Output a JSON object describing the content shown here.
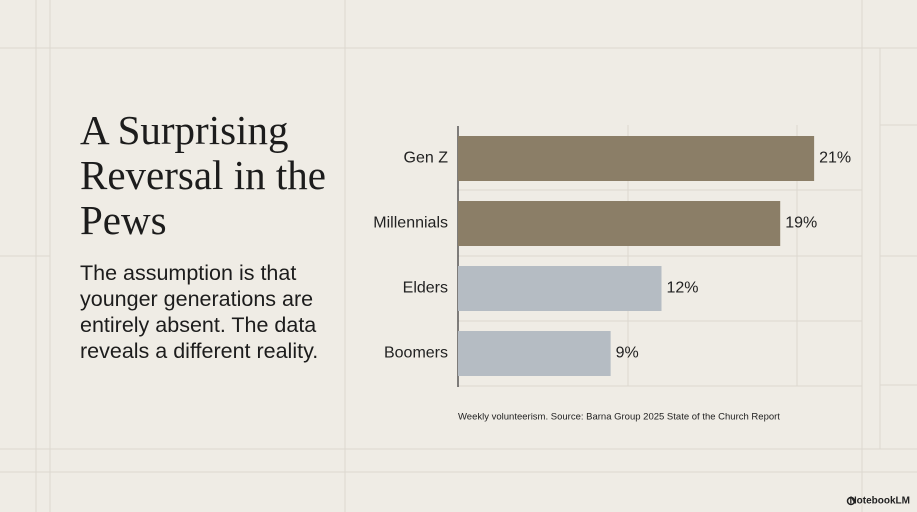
{
  "chart_data": {
    "type": "hbar",
    "title": "A Surprising Reversal in the Pews",
    "subtitle": "The assumption is that younger generations are entirely absent. The data reveals a different reality.",
    "caption": "Weekly volunteerism. Source: Barna Group 2025 State of the Church Report",
    "categories": [
      "Gen Z",
      "Millennials",
      "Elders",
      "Boomers"
    ],
    "values": [
      21,
      19,
      12,
      9
    ],
    "value_labels": [
      "21%",
      "19%",
      "12%",
      "9%"
    ],
    "colors": [
      "#8b7e67",
      "#8b7e67",
      "#b5bcc3",
      "#b5bcc3"
    ],
    "xlim": [
      0,
      24
    ]
  },
  "brand": "NotebookLM"
}
